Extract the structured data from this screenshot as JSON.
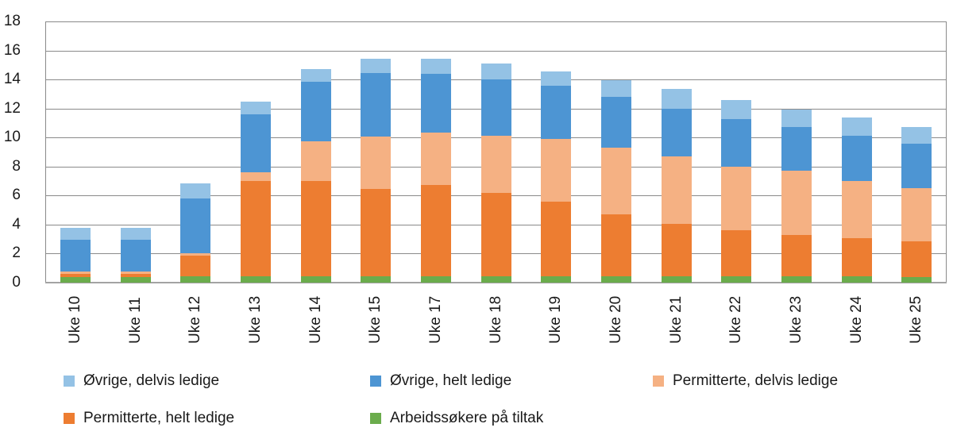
{
  "chart_data": {
    "type": "bar",
    "stacked": true,
    "title": "",
    "xlabel": "",
    "ylabel": "",
    "categories": [
      "Uke 10",
      "Uke 11",
      "Uke 12",
      "Uke 13",
      "Uke 14",
      "Uke 15",
      "Uke 17",
      "Uke 18",
      "Uke 19",
      "Uke 20",
      "Uke 21",
      "Uke 22",
      "Uke 23",
      "Uke 24",
      "Uke 25"
    ],
    "series": [
      {
        "name": "Arbeidssøkere på tiltak",
        "color": "#6BAC4C",
        "values": [
          0.4,
          0.4,
          0.45,
          0.45,
          0.45,
          0.45,
          0.45,
          0.45,
          0.45,
          0.45,
          0.45,
          0.45,
          0.45,
          0.45,
          0.4
        ]
      },
      {
        "name": "Permitterte, helt ledige",
        "color": "#ED7D31",
        "values": [
          0.2,
          0.2,
          1.4,
          6.55,
          6.55,
          6.0,
          6.3,
          5.75,
          5.15,
          4.25,
          3.6,
          3.15,
          2.85,
          2.6,
          2.45
        ]
      },
      {
        "name": "Permitterte, delvis ledige",
        "color": "#F5B183",
        "values": [
          0.15,
          0.15,
          0.2,
          0.6,
          2.75,
          3.6,
          3.6,
          3.9,
          4.3,
          4.6,
          4.65,
          4.4,
          4.4,
          3.95,
          3.65
        ]
      },
      {
        "name": "Øvrige, helt ledige",
        "color": "#4D95D3",
        "values": [
          2.2,
          2.2,
          3.75,
          4.0,
          4.1,
          4.4,
          4.05,
          3.9,
          3.65,
          3.5,
          3.3,
          3.25,
          3.0,
          3.1,
          3.1
        ]
      },
      {
        "name": "Øvrige, delvis ledige",
        "color": "#94C2E5",
        "values": [
          0.85,
          0.85,
          1.05,
          0.85,
          0.85,
          1.0,
          1.05,
          1.1,
          1.0,
          1.15,
          1.35,
          1.35,
          1.25,
          1.3,
          1.1
        ]
      }
    ],
    "totals": [
      3.8,
      3.8,
      6.85,
      12.45,
      14.7,
      15.45,
      15.45,
      15.1,
      14.55,
      13.95,
      13.35,
      12.6,
      11.95,
      11.4,
      10.7
    ],
    "ylim": [
      0,
      18
    ],
    "ytick_step": 2,
    "ytick_labels": [
      "0",
      "2",
      "4",
      "6",
      "8",
      "10",
      "12",
      "14",
      "16",
      "18"
    ],
    "grid": true,
    "legend_position": "bottom",
    "legend_rows": [
      [
        "Øvrige, delvis ledige",
        "Øvrige, helt ledige",
        "Permitterte, delvis ledige"
      ],
      [
        "Permitterte, helt ledige",
        "Arbeidssøkere på tiltak"
      ]
    ]
  },
  "colors": {
    "gridline": "#8a8a8a",
    "axis": "#a3a3a3",
    "text": "#1a1a1a",
    "background": "#ffffff"
  }
}
